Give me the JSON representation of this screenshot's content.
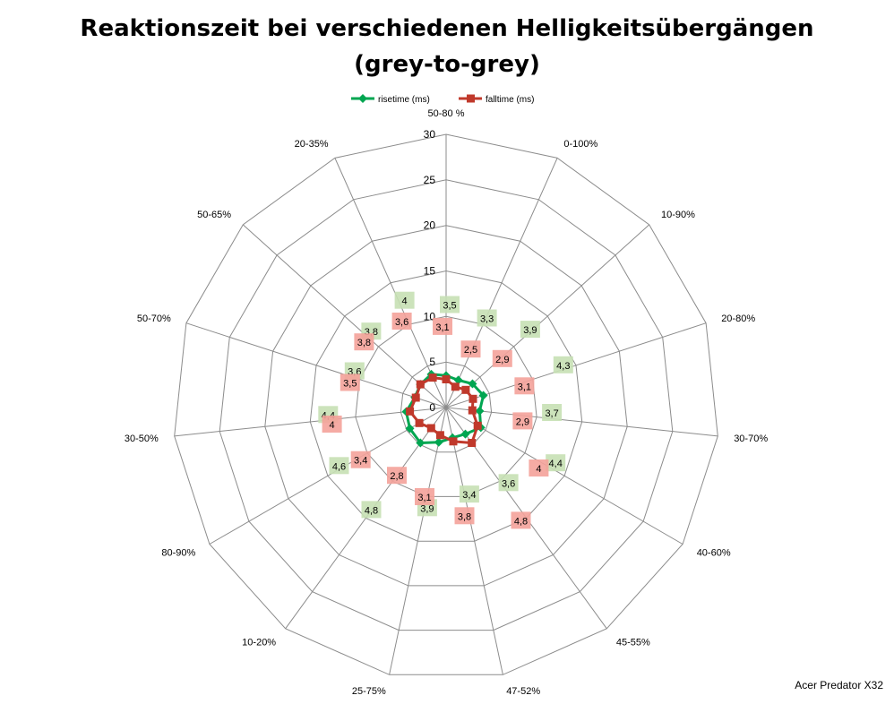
{
  "chart_data": {
    "type": "radar",
    "title": "Reaktionszeit bei verschiedenen Helligkeitsübergängen",
    "subtitle": "(grey-to-grey)",
    "categories": [
      "50-80 %",
      "0-100%",
      "10-90%",
      "20-80%",
      "30-70%",
      "40-60%",
      "45-55%",
      "47-52%",
      "25-75%",
      "10-20%",
      "80-90%",
      "30-50%",
      "50-70%",
      "50-65%",
      "20-35%"
    ],
    "radial_ticks": [
      "0",
      "5",
      "10",
      "15",
      "20",
      "25",
      "30"
    ],
    "rmax": 30,
    "grid": true,
    "legend_position": "top",
    "series": [
      {
        "name": "risetime (ms)",
        "color": "#00a651",
        "label_bg": "#c6e0b4",
        "marker": "diamond",
        "values": [
          3.5,
          3.3,
          3.9,
          4.3,
          3.7,
          4.4,
          3.6,
          3.4,
          3.9,
          4.8,
          4.6,
          4.4,
          3.6,
          3.8,
          4.0
        ],
        "labels": [
          "3,5",
          "3,3",
          "3,9",
          "4,3",
          "3,7",
          "4,4",
          "3,6",
          "3,4",
          "3,9",
          "4,8",
          "4,6",
          "4,4",
          "3,6",
          "3,8",
          "4"
        ]
      },
      {
        "name": "falltime (ms)",
        "color": "#c0392b",
        "label_bg": "#f4a29a",
        "marker": "square",
        "values": [
          3.1,
          2.5,
          2.9,
          3.1,
          2.9,
          4.0,
          4.8,
          3.8,
          3.1,
          2.8,
          3.4,
          4.0,
          3.5,
          3.8,
          3.6
        ],
        "labels": [
          "3,1",
          "2,5",
          "2,9",
          "3,1",
          "2,9",
          "4",
          "4,8",
          "3,8",
          "3,1",
          "2,8",
          "3,4",
          "4",
          "3,5",
          "3,8",
          "3,6"
        ]
      }
    ]
  },
  "watermark": "Acer Predator X32"
}
